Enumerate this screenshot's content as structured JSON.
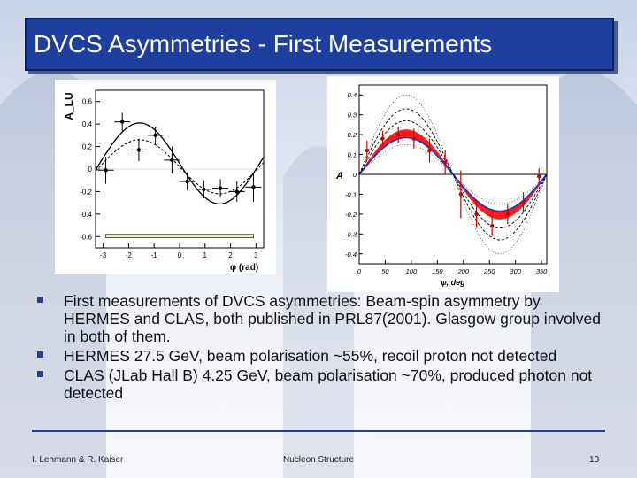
{
  "slide": {
    "title": "DVCS Asymmetries - First Measurements",
    "bullets": [
      "First measurements of DVCS asymmetries: Beam-spin asymmetry by HERMES and CLAS, both published in PRL87(2001). Glasgow group involved in both of them.",
      "HERMES 27.5 GeV, beam polarisation ~55%, recoil proton not detected",
      "CLAS (JLab Hall B) 4.25 GeV, beam polarisation ~70%, produced photon not detected"
    ],
    "footer": {
      "authors": "I. Lehmann & R. Kaiser",
      "topic": "Nucleon Structure",
      "page": "13"
    }
  },
  "colors": {
    "title_bg": "#1f3f9e",
    "band_red": "#ff1a1a",
    "band_blue": "#1a2fd6",
    "sys_band": "#f3f0b0"
  },
  "chart_data": [
    {
      "type": "scatter",
      "ylabel": "A_LU",
      "xlabel": "φ (rad)",
      "xlim": [
        -3.3,
        3.3
      ],
      "ylim": [
        -0.7,
        0.7
      ],
      "xticks": [
        "-3",
        "-2",
        "-1",
        "0",
        "1",
        "2",
        "3"
      ],
      "yticks": [
        "0.6",
        "0.4",
        "0.2",
        "0",
        "-0.2",
        "-0.4",
        "-0.6"
      ],
      "points": [
        {
          "x": -2.9,
          "y": -0.01,
          "err": 0.12
        },
        {
          "x": -2.25,
          "y": 0.42,
          "err": 0.08
        },
        {
          "x": -1.6,
          "y": 0.17,
          "err": 0.1
        },
        {
          "x": -0.95,
          "y": 0.3,
          "err": 0.08
        },
        {
          "x": -0.3,
          "y": 0.08,
          "err": 0.12
        },
        {
          "x": 0.3,
          "y": -0.11,
          "err": 0.08
        },
        {
          "x": 0.95,
          "y": -0.18,
          "err": 0.08
        },
        {
          "x": 1.6,
          "y": -0.17,
          "err": 0.08
        },
        {
          "x": 2.25,
          "y": -0.2,
          "err": 0.09
        },
        {
          "x": 2.9,
          "y": -0.16,
          "err": 0.13
        }
      ],
      "curves": [
        {
          "style": "solid",
          "offset": 0.05,
          "amp": 0.36
        },
        {
          "style": "dashed",
          "offset": 0.02,
          "amp": 0.24
        }
      ],
      "sys_band": [
        -0.58,
        -0.61
      ]
    },
    {
      "type": "scatter",
      "ylabel": "A",
      "xlabel": "φ, deg",
      "xlim": [
        0,
        360
      ],
      "ylim": [
        -0.45,
        0.45
      ],
      "xticks": [
        "0",
        "50",
        "100",
        "150",
        "200",
        "250",
        "300",
        "350"
      ],
      "yticks": [
        "0.4",
        "0.3",
        "0.2",
        "0.1",
        "0",
        "-0.1",
        "-0.2",
        "-0.3",
        "-0.4"
      ],
      "band_amplitude": [
        0.185,
        0.225
      ],
      "dashed_curves": [
        0.27,
        0.33
      ],
      "dotted_curves": [
        0.4,
        0.15
      ],
      "points": [
        {
          "x": 15,
          "y": 0.12,
          "err": 0.05
        },
        {
          "x": 45,
          "y": 0.18,
          "err": 0.04
        },
        {
          "x": 75,
          "y": 0.2,
          "err": 0.04
        },
        {
          "x": 105,
          "y": 0.18,
          "err": 0.05
        },
        {
          "x": 135,
          "y": 0.12,
          "err": 0.06
        },
        {
          "x": 165,
          "y": 0.06,
          "err": 0.06
        },
        {
          "x": 195,
          "y": -0.1,
          "err": 0.12
        },
        {
          "x": 225,
          "y": -0.2,
          "err": 0.07
        },
        {
          "x": 255,
          "y": -0.26,
          "err": 0.05
        },
        {
          "x": 285,
          "y": -0.2,
          "err": 0.05
        },
        {
          "x": 315,
          "y": -0.14,
          "err": 0.05
        },
        {
          "x": 345,
          "y": -0.01,
          "err": 0.04
        }
      ]
    }
  ]
}
